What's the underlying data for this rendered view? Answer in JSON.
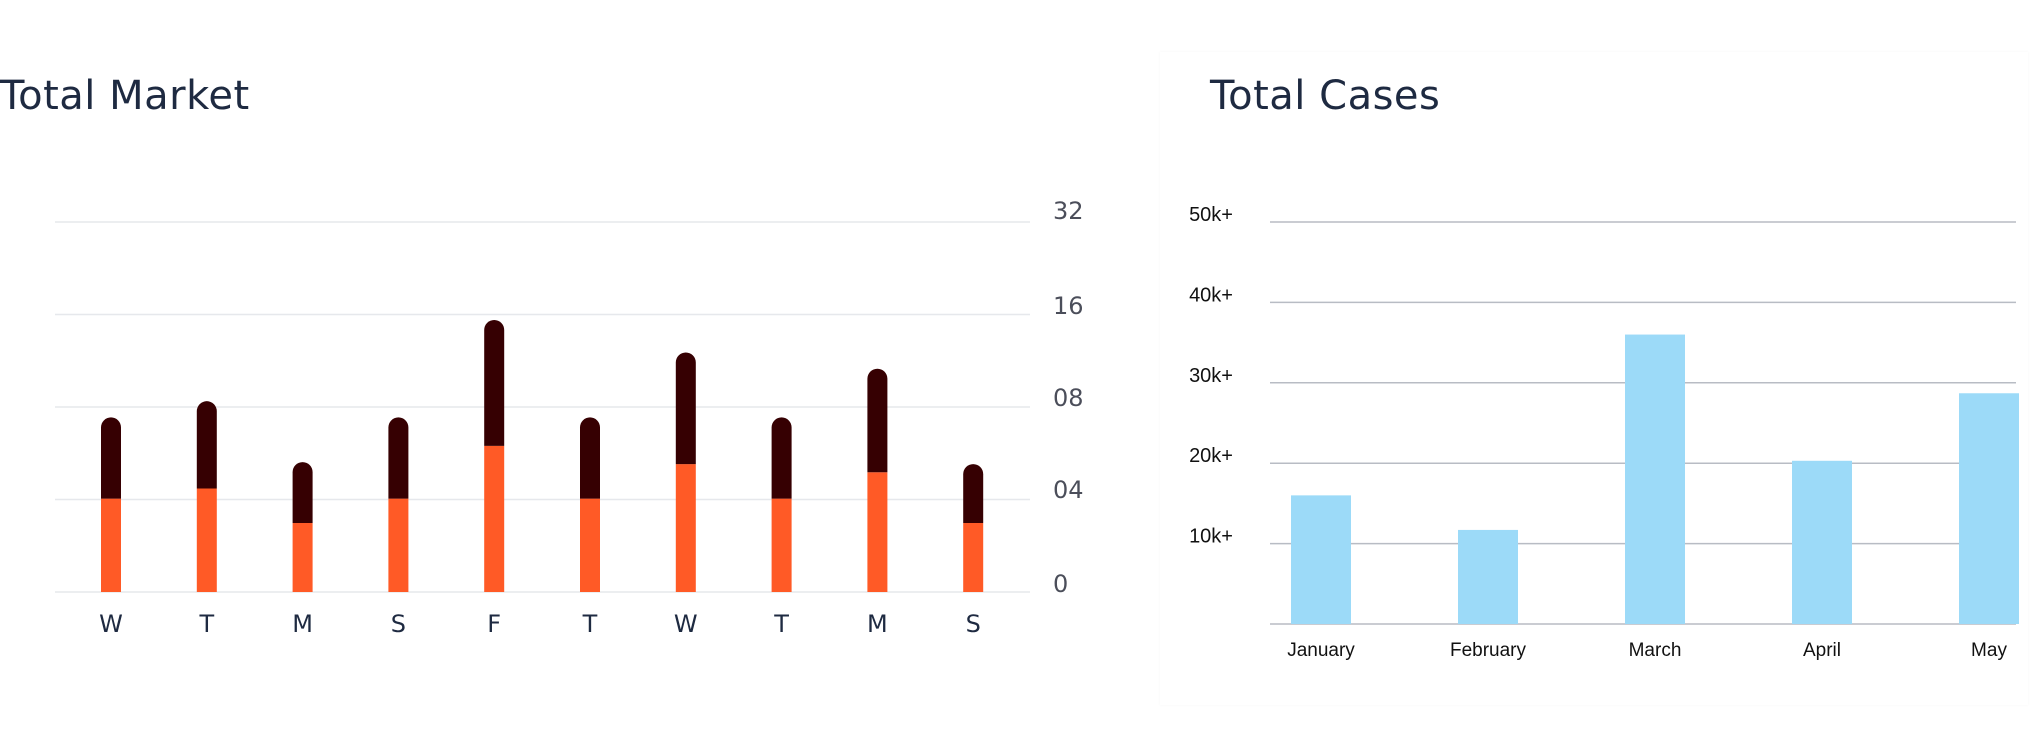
{
  "chart_data": [
    {
      "type": "bar",
      "stacked": true,
      "title": "Total Market",
      "categories": [
        "W",
        "T",
        "M",
        "S",
        "F",
        "T",
        "W",
        "T",
        "M",
        "S"
      ],
      "series": [
        {
          "color": "#ff5a26",
          "values": [
            2.3,
            2.55,
            1.7,
            2.3,
            3.6,
            2.3,
            3.15,
            2.3,
            2.95,
            1.7
          ]
        },
        {
          "color": "#360002",
          "values": [
            2.0,
            2.15,
            1.5,
            2.0,
            3.1,
            2.0,
            2.75,
            2.0,
            2.55,
            1.45
          ]
        }
      ],
      "y_tick_labels": [
        "0",
        "04",
        "08",
        "16",
        "32"
      ],
      "y_axis_position": "right",
      "grid": true,
      "bar_shape": "rounded-top"
    },
    {
      "type": "bar",
      "title": "Total Cases",
      "categories": [
        "January",
        "February",
        "March",
        "April",
        "May"
      ],
      "values": [
        16000,
        11700,
        36000,
        20300,
        28700
      ],
      "color": "#9cdaf8",
      "ylim": [
        0,
        50000
      ],
      "y_tick_labels": [
        "10k+",
        "20k+",
        "30k+",
        "40k+",
        "50k+"
      ],
      "grid": true
    }
  ]
}
